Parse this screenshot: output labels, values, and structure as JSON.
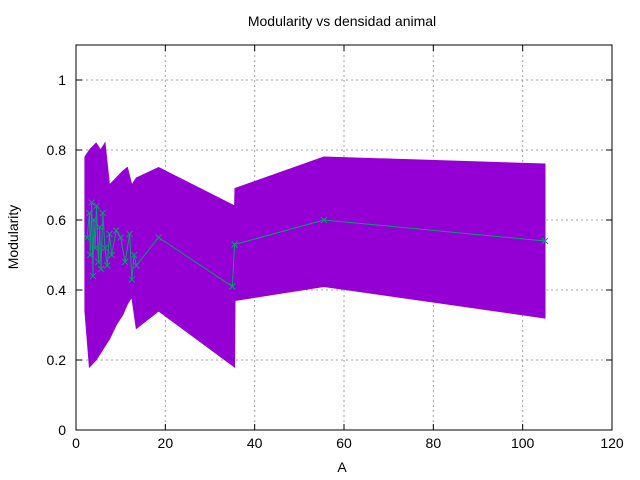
{
  "chart_data": {
    "type": "line",
    "title": "Modularity vs densidad animal",
    "xlabel": "A",
    "ylabel": "Modularity",
    "xlim": [
      0,
      120
    ],
    "ylim": [
      0,
      1.1
    ],
    "x_ticks": [
      0,
      20,
      40,
      60,
      80,
      100,
      120
    ],
    "y_ticks": [
      0,
      0.2,
      0.4,
      0.6,
      0.8,
      1
    ],
    "x_tick_labels": [
      "0",
      "20",
      "40",
      "60",
      "80",
      "100",
      "120"
    ],
    "y_tick_labels": [
      "0",
      "0.2",
      "0.4",
      "0.6",
      "0.8",
      "1"
    ],
    "grid": true,
    "colors": {
      "band": "#9400d3",
      "line": "#009e73"
    },
    "series": [
      {
        "kind": "band",
        "x": [
          2.0,
          3.0,
          4.5,
          5.5,
          6.5,
          7.5,
          9.0,
          10.5,
          11.5,
          12.5,
          13.5,
          18.5,
          35.5,
          35.6,
          55.5,
          105.0
        ],
        "upper": [
          0.78,
          0.8,
          0.82,
          0.8,
          0.82,
          0.7,
          0.72,
          0.74,
          0.75,
          0.7,
          0.72,
          0.75,
          0.64,
          0.69,
          0.78,
          0.76
        ],
        "lower": [
          0.34,
          0.18,
          0.2,
          0.22,
          0.24,
          0.26,
          0.3,
          0.33,
          0.36,
          0.38,
          0.29,
          0.34,
          0.18,
          0.37,
          0.41,
          0.32
        ]
      },
      {
        "kind": "line",
        "x": [
          2.5,
          3.0,
          3.2,
          3.5,
          3.8,
          4.0,
          4.3,
          4.6,
          5.0,
          5.3,
          5.6,
          6.0,
          6.5,
          7.0,
          7.5,
          8.0,
          9.0,
          10.0,
          11.0,
          12.0,
          12.5,
          13.0,
          13.5,
          18.5,
          35.0,
          35.5,
          55.5,
          105.0
        ],
        "y": [
          0.55,
          0.62,
          0.5,
          0.65,
          0.44,
          0.6,
          0.52,
          0.64,
          0.48,
          0.58,
          0.46,
          0.62,
          0.52,
          0.47,
          0.56,
          0.5,
          0.57,
          0.55,
          0.48,
          0.56,
          0.43,
          0.5,
          0.47,
          0.55,
          0.41,
          0.53,
          0.6,
          0.54
        ]
      }
    ]
  }
}
